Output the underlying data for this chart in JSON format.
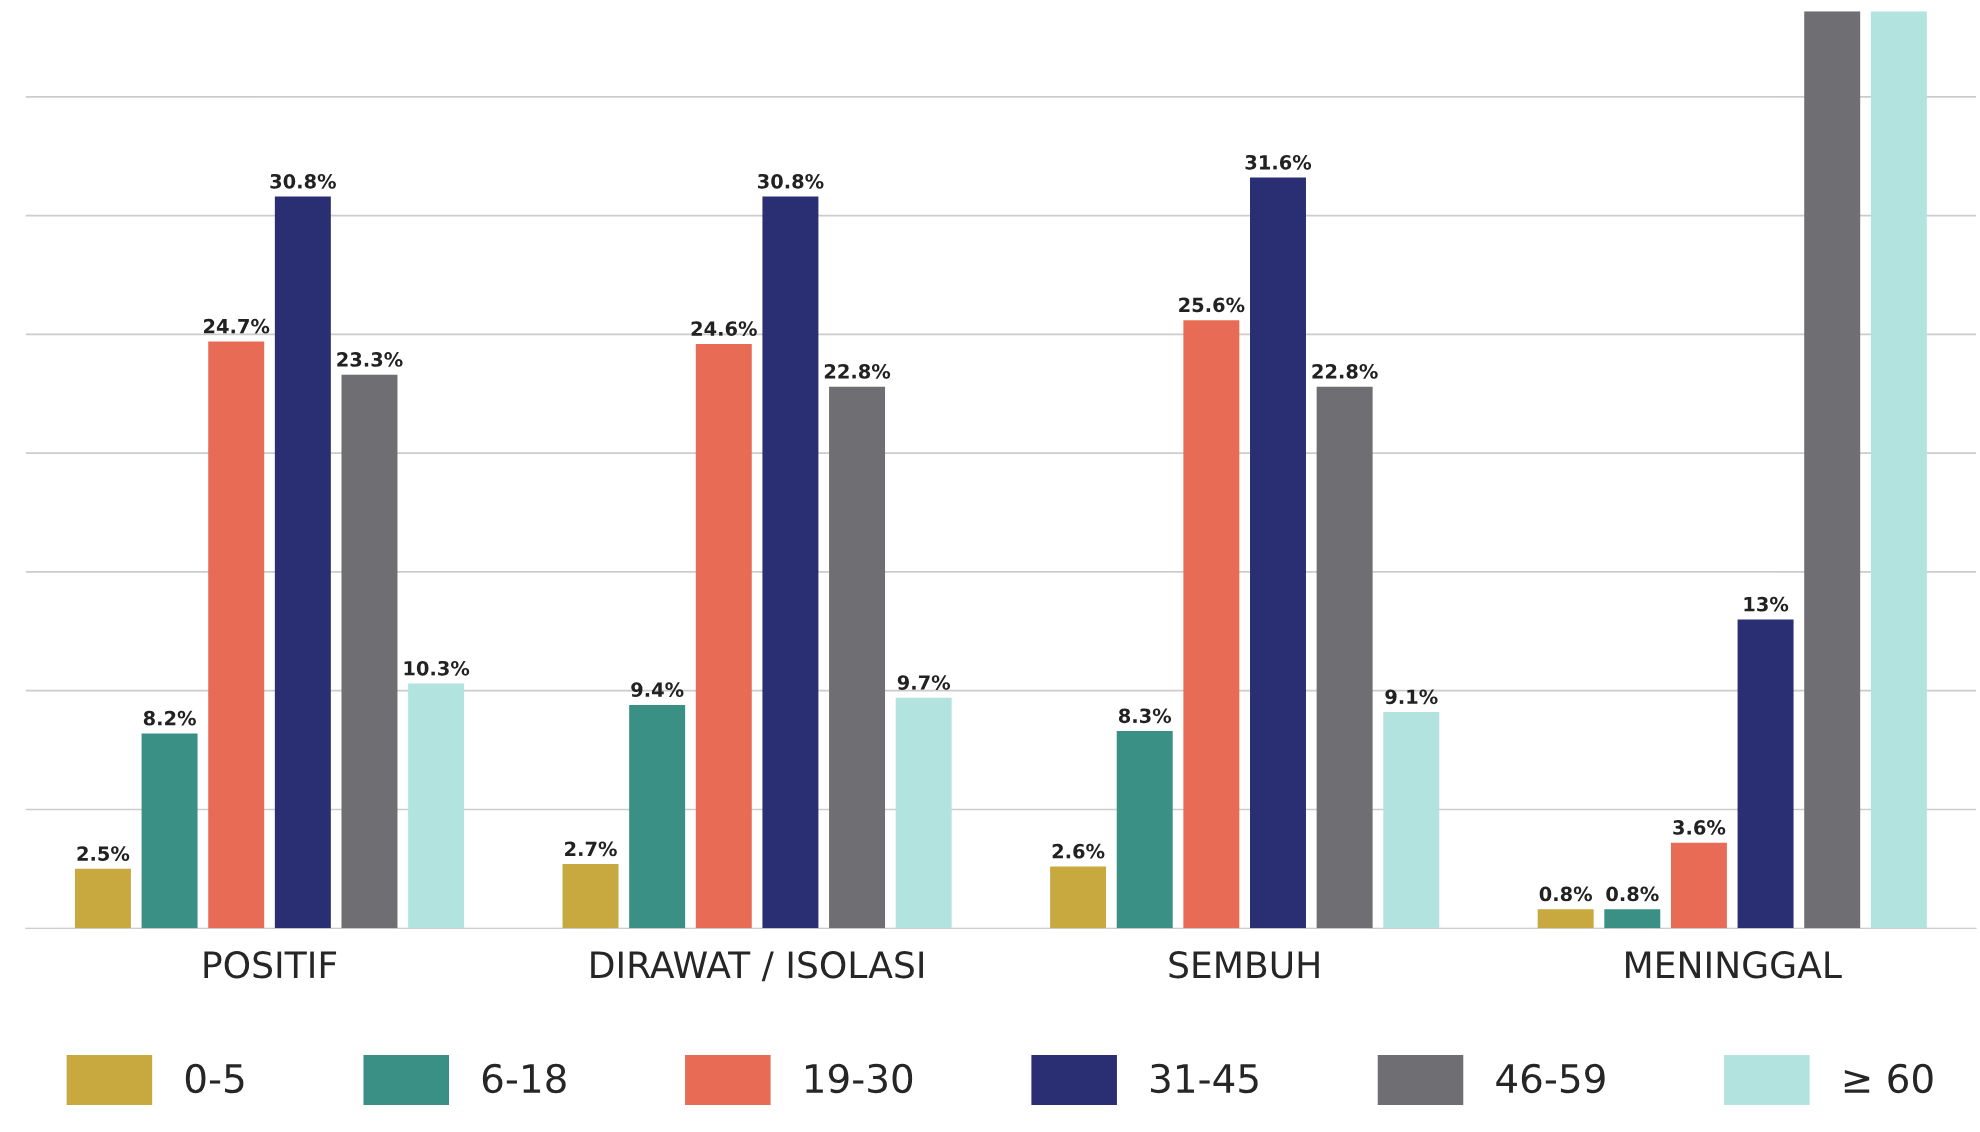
{
  "chart_data": {
    "type": "bar",
    "categories": [
      "POSITIF",
      "DIRAWAT / ISOLASI",
      "SEMBUH",
      "MENINGGAL"
    ],
    "series": [
      {
        "name": "0-5",
        "color": "#c8a940",
        "values": [
          2.5,
          2.7,
          2.6,
          0.8
        ],
        "value_labels": [
          "2.5%",
          "2.7%",
          "2.6%",
          "0.8%"
        ]
      },
      {
        "name": "6-18",
        "color": "#3a9085",
        "values": [
          8.2,
          9.4,
          8.3,
          0.8
        ],
        "value_labels": [
          "8.2%",
          "9.4%",
          "8.3%",
          "0.8%"
        ]
      },
      {
        "name": "19-30",
        "color": "#e86c55",
        "values": [
          24.7,
          24.6,
          25.6,
          3.6
        ],
        "value_labels": [
          "24.7%",
          "24.6%",
          "25.6%",
          "3.6%"
        ]
      },
      {
        "name": "31-45",
        "color": "#2a2f74",
        "values": [
          30.8,
          30.8,
          31.6,
          13
        ],
        "value_labels": [
          "30.8%",
          "30.8%",
          "31.6%",
          "13%"
        ]
      },
      {
        "name": "46-59",
        "color": "#6e6e73",
        "values": [
          23.3,
          22.8,
          22.8,
          38.6
        ],
        "value_labels": [
          "23.3%",
          "22.8%",
          "22.8%",
          null
        ]
      },
      {
        "name": "≥ 60",
        "color": "#b3e3df",
        "values": [
          10.3,
          9.7,
          9.1,
          38.6
        ],
        "value_labels": [
          "10.3%",
          "9.7%",
          "9.1%",
          null
        ]
      }
    ],
    "ylim": [
      0,
      38.6
    ],
    "yticks": [
      {
        "value": 5,
        "label": null
      },
      {
        "value": 10,
        "label": null
      },
      {
        "value": 15,
        "label": null
      },
      {
        "value": 20,
        "label": null
      },
      {
        "value": 25,
        "label": null
      },
      {
        "value": 30,
        "label": null
      },
      {
        "value": 35,
        "label": null
      }
    ],
    "tick_labels": "x",
    "grid": "y",
    "legend": "bottom"
  }
}
